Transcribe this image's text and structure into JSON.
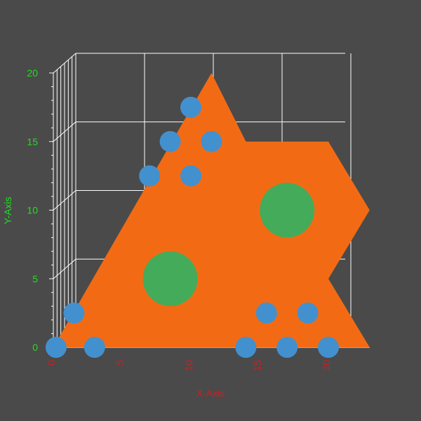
{
  "chart_data": {
    "type": "scatter",
    "title": "",
    "xlabel": "X-Axis",
    "ylabel": "Y-Axis",
    "xlim": [
      0,
      23
    ],
    "ylim": [
      0,
      20
    ],
    "x_ticks": [
      {
        "value": 0,
        "label": "0"
      },
      {
        "value": 5,
        "label": "5"
      },
      {
        "value": 10,
        "label": "10"
      },
      {
        "value": 15,
        "label": "15"
      },
      {
        "value": 20,
        "label": "20"
      }
    ],
    "y_ticks": [
      {
        "value": 0,
        "label": "0"
      },
      {
        "value": 5,
        "label": "5"
      },
      {
        "value": 10,
        "label": "10"
      },
      {
        "value": 15,
        "label": "15"
      },
      {
        "value": 20,
        "label": "20"
      }
    ],
    "grid": true,
    "legend": "none",
    "background_shape": {
      "kind": "polygon",
      "color": "#f26b14",
      "vertices": [
        [
          0,
          0
        ],
        [
          11.5,
          20
        ],
        [
          14,
          15
        ],
        [
          20,
          15
        ],
        [
          23,
          10
        ],
        [
          20,
          5
        ],
        [
          23,
          0
        ]
      ]
    },
    "series": [
      {
        "marker_color": "#4390cf",
        "size_class": "small",
        "points": [
          [
            0.2,
            0
          ],
          [
            3,
            0
          ],
          [
            14,
            0
          ],
          [
            17,
            0
          ],
          [
            20,
            0
          ],
          [
            1.5,
            2.5
          ],
          [
            15.5,
            2.5
          ],
          [
            18.5,
            2.5
          ],
          [
            7,
            12.5
          ],
          [
            10,
            12.5
          ],
          [
            8.5,
            15
          ],
          [
            11.5,
            15
          ],
          [
            10,
            17.5
          ]
        ]
      },
      {
        "marker_color": "#44ab5a",
        "size_class": "large",
        "points": [
          [
            8.5,
            5
          ],
          [
            17,
            10
          ]
        ]
      }
    ],
    "colors": {
      "background": "#4a4a4a",
      "grid": "#ffffff",
      "x_tick_label": "#cc2020",
      "y_tick_label": "#22dd22",
      "x_axis_title": "#cc2020",
      "y_axis_title": "#22dd22"
    }
  }
}
